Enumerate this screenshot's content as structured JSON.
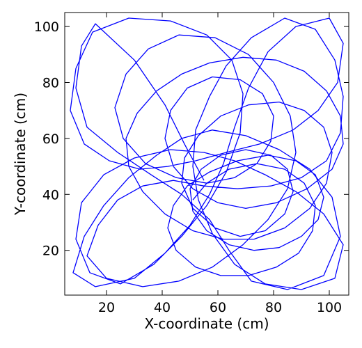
{
  "chart_data": {
    "type": "line",
    "title": "",
    "xlabel": "X-coordinate (cm)",
    "ylabel": "Y-coordinate (cm)",
    "xlim": [
      5,
      107
    ],
    "ylim": [
      4,
      105
    ],
    "xticks": [
      20,
      40,
      60,
      80,
      100
    ],
    "yticks": [
      20,
      40,
      60,
      80,
      100
    ],
    "grid": false,
    "line_color": "#0000ff",
    "series": [
      {
        "points": [
          [
            55,
            45
          ],
          [
            48,
            58
          ],
          [
            41,
            72
          ],
          [
            30,
            88
          ],
          [
            16,
            101
          ],
          [
            11,
            93
          ],
          [
            9,
            78
          ],
          [
            13,
            64
          ],
          [
            24,
            55
          ],
          [
            36,
            47
          ],
          [
            47,
            40
          ],
          [
            57,
            31
          ],
          [
            64,
            20
          ],
          [
            72,
            9
          ],
          [
            85,
            6
          ],
          [
            98,
            11
          ],
          [
            104,
            25
          ],
          [
            101,
            39
          ],
          [
            93,
            49
          ],
          [
            82,
            56
          ],
          [
            70,
            61
          ],
          [
            58,
            63
          ],
          [
            47,
            60
          ],
          [
            38,
            54
          ],
          [
            28,
            46
          ],
          [
            19,
            36
          ],
          [
            12,
            25
          ],
          [
            8,
            12
          ],
          [
            16,
            7
          ],
          [
            30,
            10
          ],
          [
            41,
            19
          ],
          [
            50,
            29
          ],
          [
            57,
            40
          ],
          [
            62,
            51
          ],
          [
            66,
            64
          ],
          [
            71,
            78
          ],
          [
            78,
            91
          ],
          [
            88,
            100
          ],
          [
            100,
            103
          ],
          [
            105,
            94
          ],
          [
            103,
            80
          ],
          [
            96,
            70
          ],
          [
            87,
            63
          ],
          [
            75,
            58
          ],
          [
            63,
            55
          ],
          [
            52,
            52
          ],
          [
            42,
            50
          ],
          [
            32,
            49
          ],
          [
            21,
            52
          ],
          [
            12,
            58
          ],
          [
            7,
            70
          ],
          [
            9,
            85
          ],
          [
            15,
            98
          ],
          [
            28,
            103
          ],
          [
            43,
            102
          ],
          [
            56,
            97
          ],
          [
            65,
            88
          ],
          [
            69,
            76
          ],
          [
            68,
            62
          ],
          [
            63,
            48
          ],
          [
            56,
            36
          ],
          [
            47,
            25
          ],
          [
            37,
            15
          ],
          [
            25,
            8
          ],
          [
            14,
            12
          ],
          [
            9,
            24
          ],
          [
            11,
            37
          ],
          [
            19,
            47
          ],
          [
            30,
            53
          ],
          [
            43,
            56
          ],
          [
            55,
            55
          ],
          [
            66,
            52
          ],
          [
            77,
            47
          ],
          [
            88,
            41
          ],
          [
            98,
            33
          ],
          [
            105,
            22
          ],
          [
            102,
            10
          ],
          [
            90,
            6
          ],
          [
            77,
            8
          ],
          [
            66,
            15
          ],
          [
            58,
            26
          ],
          [
            53,
            38
          ],
          [
            51,
            50
          ],
          [
            52,
            63
          ],
          [
            57,
            75
          ],
          [
            63,
            86
          ],
          [
            72,
            96
          ],
          [
            84,
            103
          ],
          [
            95,
            99
          ],
          [
            102,
            88
          ],
          [
            105,
            75
          ],
          [
            104,
            62
          ],
          [
            99,
            52
          ],
          [
            90,
            46
          ],
          [
            79,
            43
          ],
          [
            67,
            42
          ],
          [
            55,
            43
          ],
          [
            44,
            45
          ],
          [
            33,
            43
          ],
          [
            24,
            38
          ],
          [
            17,
            29
          ],
          [
            13,
            18
          ],
          [
            20,
            10
          ],
          [
            33,
            7
          ],
          [
            46,
            9
          ],
          [
            58,
            14
          ],
          [
            69,
            22
          ],
          [
            78,
            31
          ],
          [
            85,
            42
          ],
          [
            88,
            55
          ],
          [
            86,
            68
          ],
          [
            80,
            80
          ],
          [
            71,
            90
          ],
          [
            59,
            96
          ],
          [
            46,
            97
          ],
          [
            35,
            92
          ],
          [
            27,
            83
          ],
          [
            23,
            71
          ],
          [
            26,
            60
          ],
          [
            34,
            51
          ],
          [
            45,
            46
          ],
          [
            56,
            44
          ],
          [
            66,
            46
          ],
          [
            74,
            51
          ],
          [
            79,
            59
          ],
          [
            80,
            68
          ],
          [
            76,
            76
          ],
          [
            68,
            81
          ],
          [
            58,
            82
          ],
          [
            49,
            78
          ],
          [
            43,
            70
          ],
          [
            41,
            60
          ],
          [
            44,
            50
          ],
          [
            51,
            42
          ],
          [
            60,
            37
          ],
          [
            70,
            35
          ],
          [
            81,
            37
          ],
          [
            92,
            42
          ],
          [
            101,
            49
          ],
          [
            105,
            58
          ],
          [
            104,
            68
          ],
          [
            99,
            77
          ],
          [
            91,
            84
          ],
          [
            81,
            88
          ],
          [
            69,
            89
          ],
          [
            57,
            87
          ],
          [
            47,
            83
          ],
          [
            38,
            77
          ],
          [
            31,
            69
          ],
          [
            27,
            60
          ],
          [
            28,
            50
          ],
          [
            33,
            41
          ],
          [
            41,
            33
          ],
          [
            51,
            27
          ],
          [
            62,
            24
          ],
          [
            73,
            24
          ],
          [
            84,
            28
          ],
          [
            93,
            35
          ],
          [
            99,
            44
          ],
          [
            101,
            55
          ],
          [
            98,
            64
          ],
          [
            91,
            70
          ],
          [
            82,
            73
          ],
          [
            71,
            72
          ],
          [
            61,
            68
          ],
          [
            53,
            61
          ],
          [
            48,
            53
          ],
          [
            47,
            44
          ],
          [
            51,
            35
          ],
          [
            59,
            28
          ],
          [
            68,
            25
          ],
          [
            77,
            27
          ],
          [
            84,
            33
          ],
          [
            87,
            41
          ],
          [
            85,
            49
          ],
          [
            79,
            54
          ],
          [
            70,
            56
          ],
          [
            61,
            54
          ],
          [
            54,
            49
          ],
          [
            50,
            42
          ],
          [
            51,
            34
          ],
          [
            56,
            27
          ],
          [
            64,
            22
          ],
          [
            73,
            20
          ],
          [
            82,
            21
          ],
          [
            90,
            25
          ],
          [
            96,
            31
          ],
          [
            98,
            39
          ],
          [
            95,
            47
          ],
          [
            88,
            52
          ],
          [
            78,
            54
          ],
          [
            67,
            52
          ],
          [
            57,
            48
          ],
          [
            49,
            43
          ],
          [
            44,
            36
          ],
          [
            42,
            28
          ],
          [
            45,
            20
          ],
          [
            52,
            14
          ],
          [
            61,
            11
          ],
          [
            71,
            11
          ],
          [
            81,
            14
          ],
          [
            89,
            19
          ],
          [
            94,
            27
          ],
          [
            95,
            36
          ],
          [
            91,
            44
          ],
          [
            84,
            49
          ],
          [
            74,
            51
          ],
          [
            64,
            49
          ],
          [
            56,
            44
          ],
          [
            51,
            38
          ]
        ]
      }
    ]
  }
}
